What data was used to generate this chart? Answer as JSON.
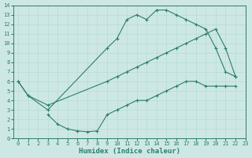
{
  "line1_x": [
    0,
    1,
    3,
    9,
    10,
    11,
    12,
    13,
    14,
    15,
    16,
    17,
    18,
    19,
    20,
    21,
    22
  ],
  "line1_y": [
    6,
    4.5,
    3,
    9.5,
    10.5,
    12.5,
    13,
    12.5,
    13.5,
    13.5,
    13,
    12.5,
    12,
    11.5,
    9.5,
    7,
    6.5
  ],
  "line2_x": [
    0,
    1,
    3,
    9,
    10,
    11,
    12,
    13,
    14,
    15,
    16,
    17,
    18,
    19,
    20,
    21,
    22
  ],
  "line2_y": [
    6,
    4.5,
    3.5,
    6,
    6.5,
    7,
    7.5,
    8,
    8.5,
    9,
    9.5,
    10,
    10.5,
    11,
    11.5,
    9.5,
    6.5
  ],
  "line3_x": [
    3,
    4,
    5,
    6,
    7,
    8,
    9,
    10,
    11,
    12,
    13,
    14,
    15,
    16,
    17,
    18,
    19,
    20,
    21,
    22
  ],
  "line3_y": [
    2.5,
    1.5,
    1,
    0.8,
    0.7,
    0.8,
    2.5,
    3,
    3.5,
    4,
    4,
    4.5,
    5,
    5.5,
    6,
    6,
    5.5,
    5.5,
    5.5,
    5.5
  ],
  "color": "#2e7d6e",
  "bg_color": "#cde8e4",
  "grid_color": "#b8ddd8",
  "xlim": [
    -0.5,
    23
  ],
  "ylim": [
    0,
    14
  ],
  "xlabel": "Humidex (Indice chaleur)",
  "xticks": [
    0,
    1,
    2,
    3,
    4,
    5,
    6,
    7,
    8,
    9,
    10,
    11,
    12,
    13,
    14,
    15,
    16,
    17,
    18,
    19,
    20,
    21,
    22,
    23
  ],
  "yticks": [
    0,
    1,
    2,
    3,
    4,
    5,
    6,
    7,
    8,
    9,
    10,
    11,
    12,
    13,
    14
  ],
  "tick_fontsize": 5,
  "label_fontsize": 6.5,
  "marker": "+",
  "markersize": 3,
  "linewidth": 0.8
}
